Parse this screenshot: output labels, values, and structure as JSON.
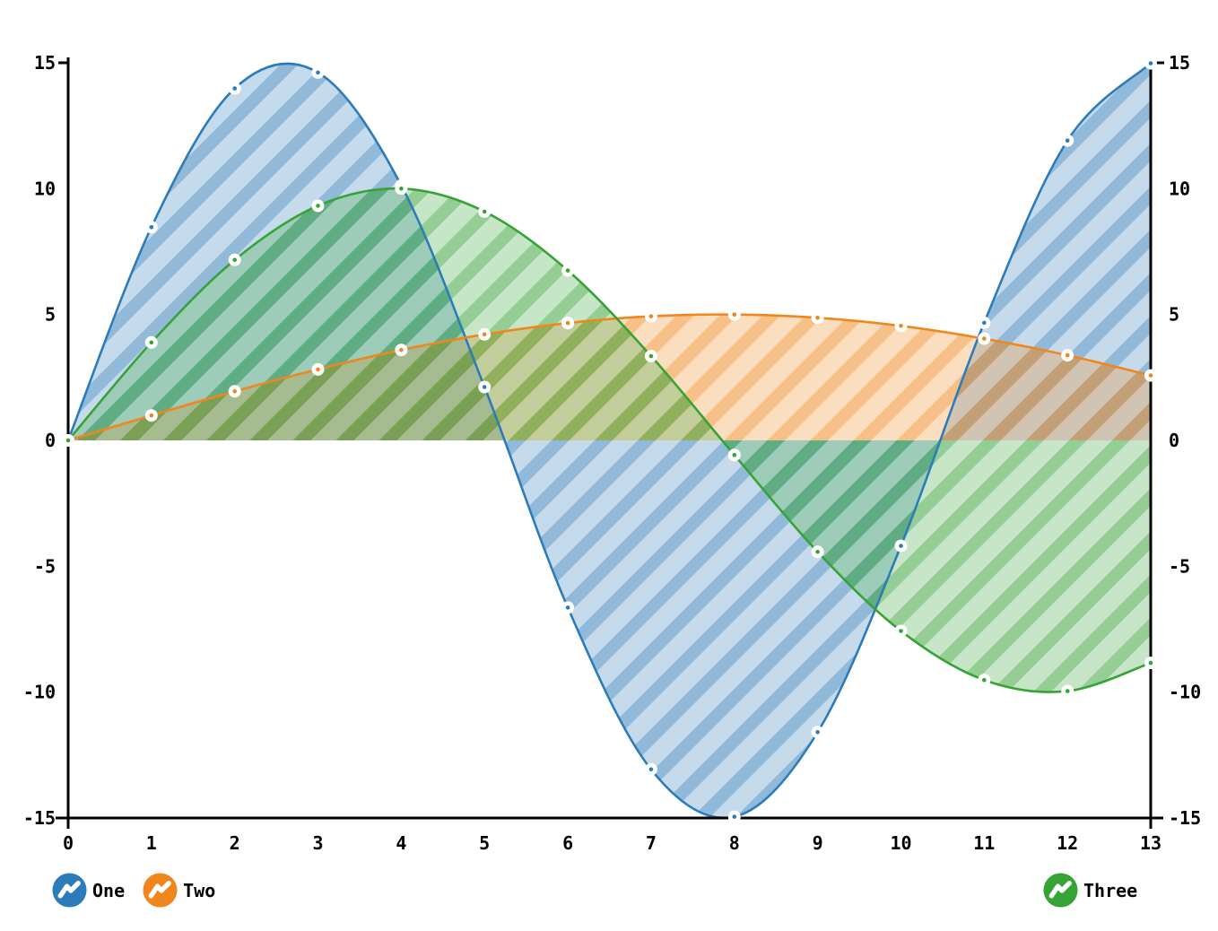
{
  "chart_data": {
    "type": "area",
    "title": "",
    "xlabel": "",
    "ylabel": "",
    "x": [
      0,
      1,
      2,
      3,
      4,
      5,
      6,
      7,
      8,
      9,
      10,
      11,
      12,
      13
    ],
    "series": [
      {
        "name": "One",
        "color": "#2d7cba",
        "values": [
          0,
          8.47,
          13.98,
          14.61,
          10.13,
          2.12,
          -6.64,
          -13.07,
          -14.95,
          -11.59,
          -4.19,
          4.67,
          11.91,
          14.98
        ]
      },
      {
        "name": "Two",
        "color": "#f0861c",
        "values": [
          0,
          0.99,
          1.95,
          2.82,
          3.59,
          4.21,
          4.66,
          4.93,
          5.0,
          4.87,
          4.55,
          4.04,
          3.38,
          2.58
        ]
      },
      {
        "name": "Three",
        "color": "#36a335",
        "values": [
          0,
          3.89,
          7.17,
          9.32,
          10.0,
          9.09,
          6.75,
          3.35,
          -0.58,
          -4.43,
          -7.57,
          -9.52,
          -9.96,
          -8.84
        ]
      }
    ],
    "xlim": [
      0,
      13
    ],
    "ylim": [
      -15,
      15
    ],
    "baseline": 0,
    "x_tick_labels": [
      "0",
      "1",
      "2",
      "3",
      "4",
      "5",
      "6",
      "7",
      "8",
      "9",
      "10",
      "11",
      "12",
      "13"
    ],
    "y_tick_labels": [
      "15",
      "10",
      "5",
      "0",
      "-5",
      "-10",
      "-15"
    ],
    "y_tick_values": [
      15,
      10,
      5,
      0,
      -5,
      -10,
      -15
    ],
    "y_axis_sides": [
      "left",
      "right"
    ],
    "fill_style": "diagonal-hatch",
    "marker_style": "white-circle-with-dot",
    "grid": false,
    "legend_position": "bottom"
  },
  "legend": {
    "items": [
      {
        "label": "One",
        "color": "#2d7cba"
      },
      {
        "label": "Two",
        "color": "#f0861c"
      },
      {
        "label": "Three",
        "color": "#36a335"
      }
    ]
  },
  "colors": {
    "axis": "#000000",
    "background": "#ffffff",
    "marker_fill": "#ffffff"
  }
}
